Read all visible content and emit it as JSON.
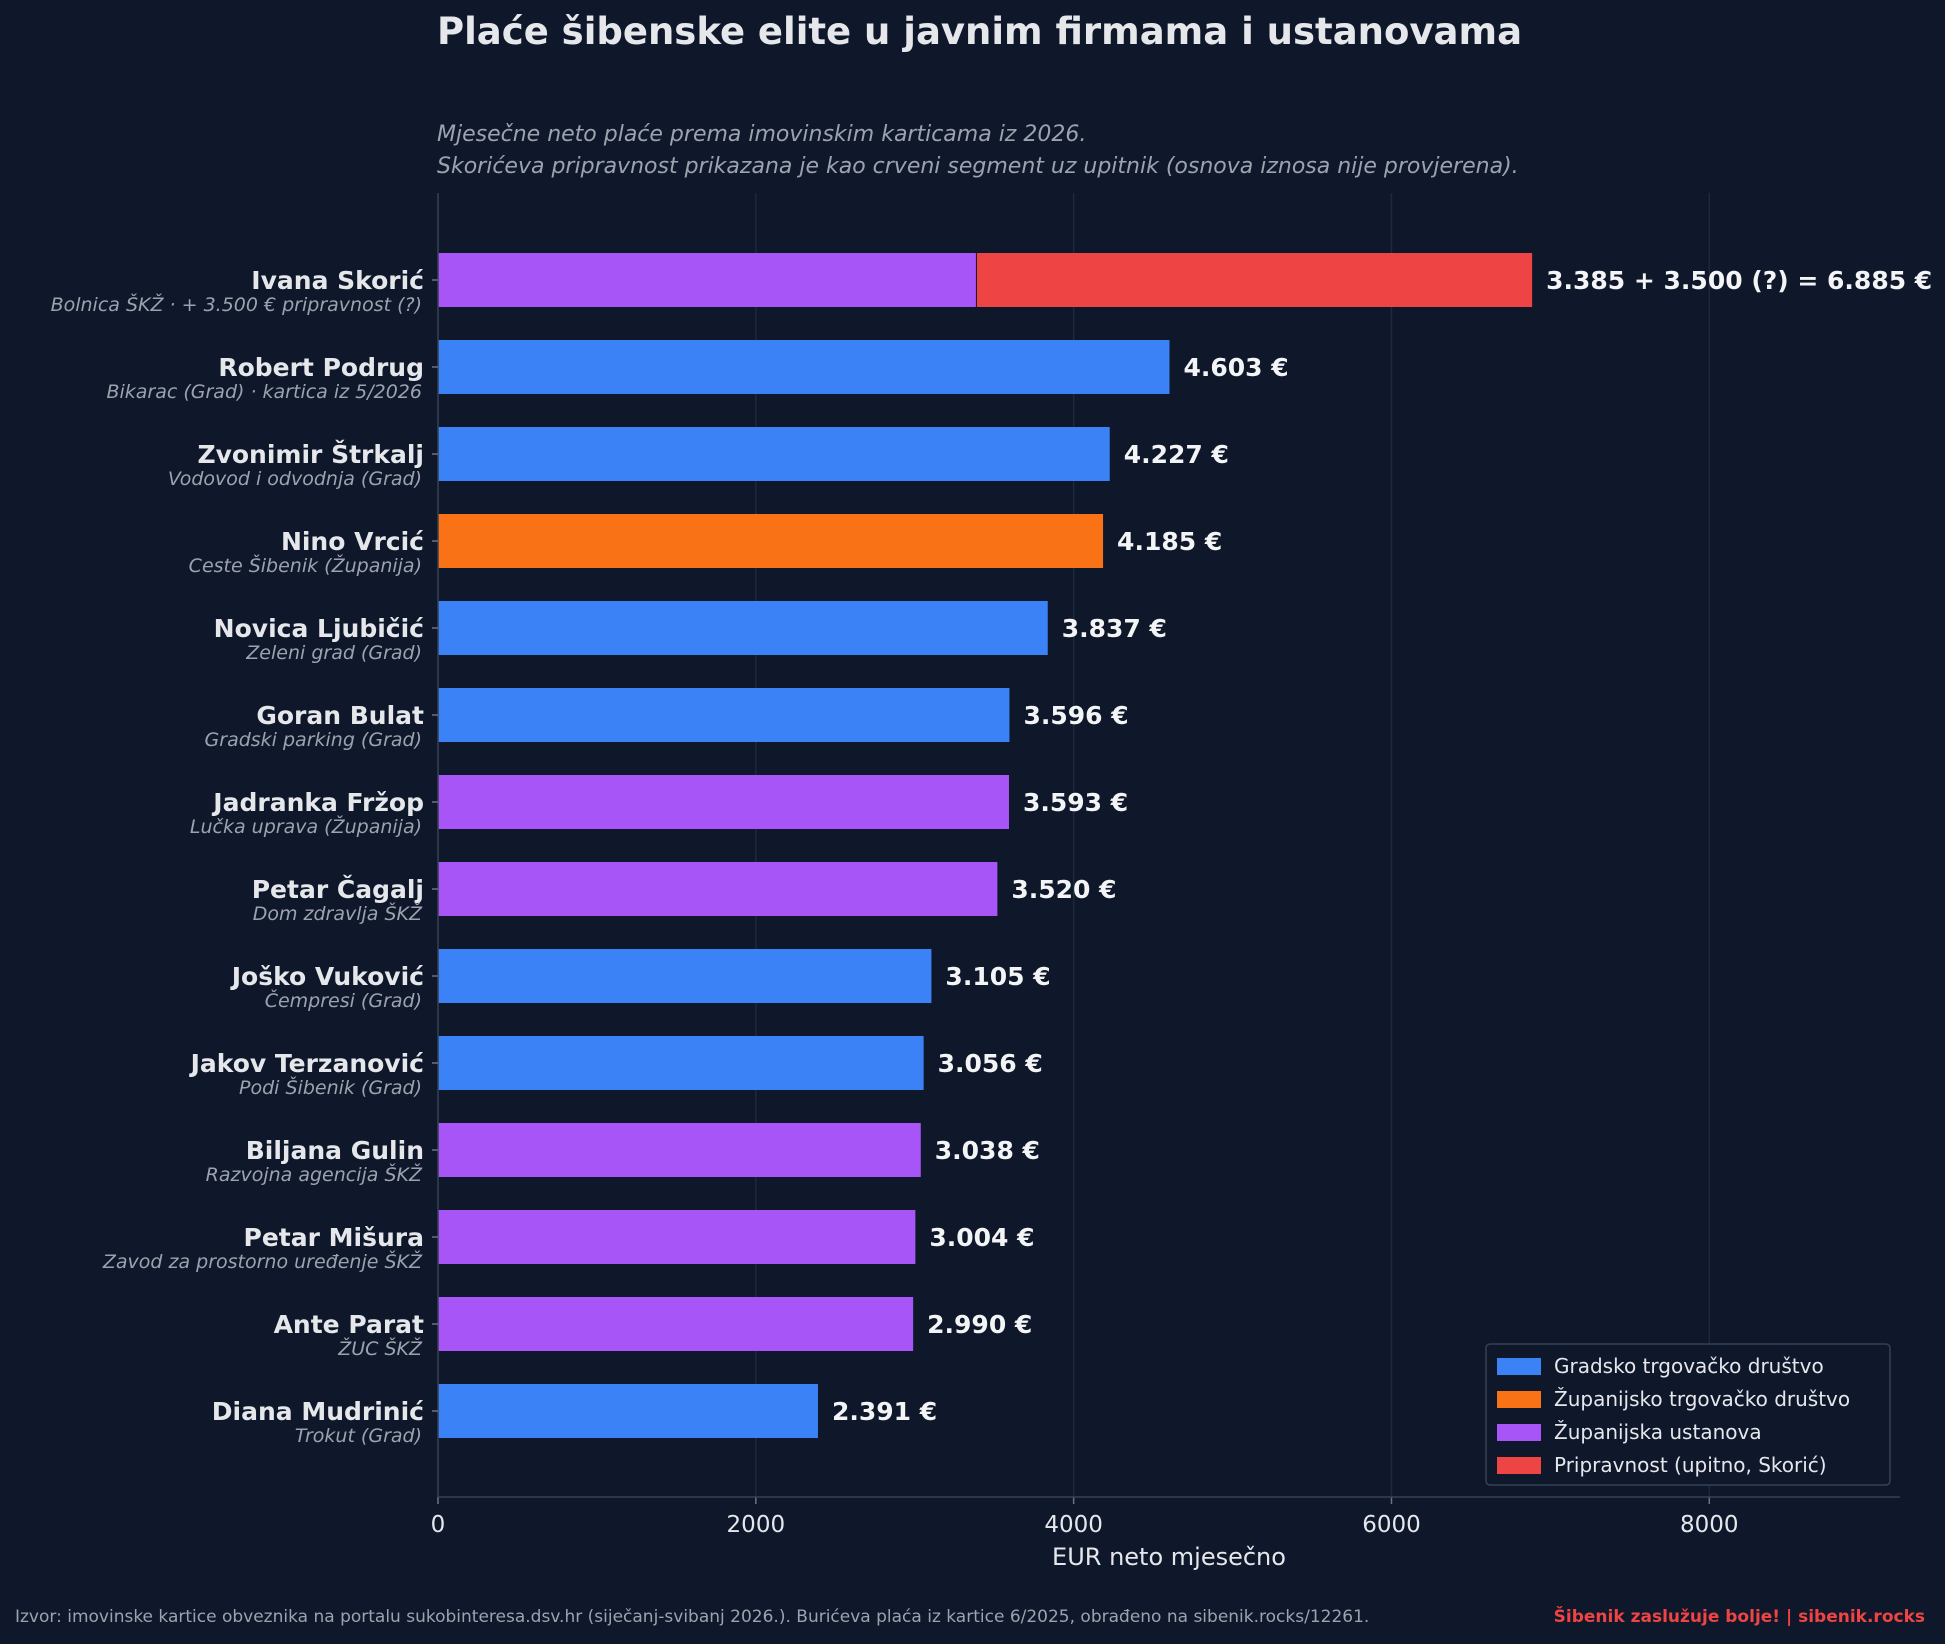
{
  "title": "Plaće šibenske elite u javnim firmama i ustanovama",
  "subtitle_lines": [
    "Mjesečne neto plaće prema imovinskim karticama iz 2026.",
    "Skorićeva pripravnost prikazana je kao crveni segment uz upitnik (osnova iznosa nije provjerena)."
  ],
  "footer": {
    "source": "Izvor: imovinske kartice obveznika na portalu sukobinteresa.dsv.hr (siječanj-svibanj 2026.). Burićeva plaća iz kartice 6/2025, obrađeno na sibenik.rocks/12261.",
    "brand": "Šibenik zaslužuje bolje!  |  sibenik.rocks"
  },
  "colors": {
    "background": "#0f172a",
    "grad": "#3b82f6",
    "zupanija_drustvo": "#f97316",
    "zupanija_ustanova": "#a855f7",
    "pripravnost": "#ef4444"
  },
  "chart_data": {
    "type": "bar",
    "orientation": "horizontal",
    "stacked": true,
    "xlabel": "EUR neto mjesečno",
    "xlim": [
      0,
      9200
    ],
    "xticks": [
      0,
      2000,
      4000,
      6000,
      8000
    ],
    "grid": "vertical",
    "legend_position": "bottom-right",
    "legend": [
      {
        "key": "grad",
        "label": "Gradsko trgovačko društvo"
      },
      {
        "key": "zupanija_drustvo",
        "label": "Županijsko trgovačko društvo"
      },
      {
        "key": "zupanija_ustanova",
        "label": "Županijska ustanova"
      },
      {
        "key": "pripravnost",
        "label": "Pripravnost (upitno, Skorić)"
      }
    ],
    "rows": [
      {
        "name": "Ivana Skorić",
        "org": "Bolnica ŠKŽ  ·  + 3.500 € pripravnost (?)",
        "value": 3385,
        "extra": 3500,
        "category": "zupanija_ustanova",
        "label": "3.385 + 3.500 (?) = 6.885 €"
      },
      {
        "name": "Robert Podrug",
        "org": "Bikarac (Grad)  ·  kartica iz 5/2026",
        "value": 4603,
        "category": "grad",
        "label": "4.603 €"
      },
      {
        "name": "Zvonimir Štrkalj",
        "org": "Vodovod i odvodnja (Grad)",
        "value": 4227,
        "category": "grad",
        "label": "4.227 €"
      },
      {
        "name": "Nino Vrcić",
        "org": "Ceste Šibenik (Županija)",
        "value": 4185,
        "category": "zupanija_drustvo",
        "label": "4.185 €"
      },
      {
        "name": "Novica Ljubičić",
        "org": "Zeleni grad (Grad)",
        "value": 3837,
        "category": "grad",
        "label": "3.837 €"
      },
      {
        "name": "Goran Bulat",
        "org": "Gradski parking (Grad)",
        "value": 3596,
        "category": "grad",
        "label": "3.596 €"
      },
      {
        "name": "Jadranka Fržop",
        "org": "Lučka uprava (Županija)",
        "value": 3593,
        "category": "zupanija_ustanova",
        "label": "3.593 €"
      },
      {
        "name": "Petar Čagalj",
        "org": "Dom zdravlja ŠKŽ",
        "value": 3520,
        "category": "zupanija_ustanova",
        "label": "3.520 €"
      },
      {
        "name": "Joško Vuković",
        "org": "Čempresi (Grad)",
        "value": 3105,
        "category": "grad",
        "label": "3.105 €"
      },
      {
        "name": "Jakov Terzanović",
        "org": "Podi Šibenik (Grad)",
        "value": 3056,
        "category": "grad",
        "label": "3.056 €"
      },
      {
        "name": "Biljana Gulin",
        "org": "Razvojna agencija ŠKŽ",
        "value": 3038,
        "category": "zupanija_ustanova",
        "label": "3.038 €"
      },
      {
        "name": "Petar Mišura",
        "org": "Zavod za prostorno uređenje ŠKŽ",
        "value": 3004,
        "category": "zupanija_ustanova",
        "label": "3.004 €"
      },
      {
        "name": "Ante Parat",
        "org": "ŽUC ŠKŽ",
        "value": 2990,
        "category": "zupanija_ustanova",
        "label": "2.990 €"
      },
      {
        "name": "Diana Mudrinić",
        "org": "Trokut (Grad)",
        "value": 2391,
        "category": "grad",
        "label": "2.391 €"
      }
    ]
  }
}
